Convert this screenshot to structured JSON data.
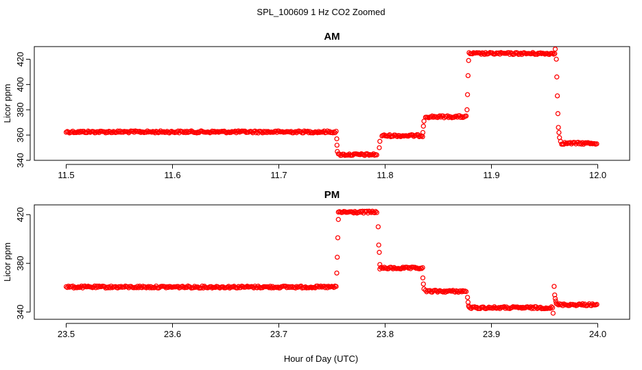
{
  "figure": {
    "title": "SPL_100609  1 Hz CO2 Zoomed",
    "xlabel": "Hour of Day (UTC)"
  },
  "chart_data": [
    {
      "type": "scatter",
      "title": "AM",
      "xlabel": "Hour of Day (UTC)",
      "ylabel": "Licor ppm",
      "xlim": [
        11.47,
        12.03
      ],
      "ylim": [
        340,
        430
      ],
      "x_ticks": [
        "11.5",
        "11.6",
        "11.7",
        "11.8",
        "11.9",
        "12.0"
      ],
      "y_ticks": [
        "340",
        "360",
        "380",
        "400",
        "420"
      ],
      "marker_color": "#ff0000",
      "marker": "open-circle",
      "grid": false,
      "segments": [
        {
          "x_start": 11.5,
          "x_end": 11.754,
          "y": 362.5
        },
        {
          "x_start": 11.756,
          "x_end": 11.793,
          "y": 344.5
        },
        {
          "x_start": 11.797,
          "x_end": 11.836,
          "y": 359.5
        },
        {
          "x_start": 11.838,
          "x_end": 11.877,
          "y": 374.5
        },
        {
          "x_start": 11.879,
          "x_end": 11.96,
          "y": 424.5
        },
        {
          "x_start": 11.966,
          "x_end": 12.0,
          "y": 353.5
        }
      ],
      "transition_points": [
        {
          "x": 11.7545,
          "y": 357
        },
        {
          "x": 11.7547,
          "y": 352
        },
        {
          "x": 11.755,
          "y": 347
        },
        {
          "x": 11.7945,
          "y": 350
        },
        {
          "x": 11.795,
          "y": 355
        },
        {
          "x": 11.8355,
          "y": 362
        },
        {
          "x": 11.836,
          "y": 367
        },
        {
          "x": 11.8365,
          "y": 371
        },
        {
          "x": 11.877,
          "y": 380
        },
        {
          "x": 11.8775,
          "y": 392
        },
        {
          "x": 11.878,
          "y": 407
        },
        {
          "x": 11.8785,
          "y": 419
        },
        {
          "x": 11.96,
          "y": 428
        },
        {
          "x": 11.961,
          "y": 420
        },
        {
          "x": 11.9615,
          "y": 406
        },
        {
          "x": 11.962,
          "y": 391
        },
        {
          "x": 11.9625,
          "y": 377
        },
        {
          "x": 11.963,
          "y": 366
        },
        {
          "x": 11.9635,
          "y": 362
        },
        {
          "x": 11.964,
          "y": 358
        },
        {
          "x": 11.965,
          "y": 355
        }
      ]
    },
    {
      "type": "scatter",
      "title": "PM",
      "xlabel": "Hour of Day (UTC)",
      "ylabel": "Licor ppm",
      "xlim": [
        23.47,
        24.03
      ],
      "ylim": [
        334,
        428
      ],
      "x_ticks": [
        "23.5",
        "23.6",
        "23.7",
        "23.8",
        "23.9",
        "24.0"
      ],
      "y_ticks": [
        "340",
        "380",
        "420"
      ],
      "marker_color": "#ff0000",
      "marker": "open-circle",
      "grid": false,
      "segments": [
        {
          "x_start": 23.5,
          "x_end": 23.754,
          "y": 360.5
        },
        {
          "x_start": 23.756,
          "x_end": 23.793,
          "y": 422
        },
        {
          "x_start": 23.795,
          "x_end": 23.836,
          "y": 376
        },
        {
          "x_start": 23.838,
          "x_end": 23.877,
          "y": 357
        },
        {
          "x_start": 23.879,
          "x_end": 23.958,
          "y": 343.5
        },
        {
          "x_start": 23.962,
          "x_end": 24.0,
          "y": 346
        }
      ],
      "transition_points": [
        {
          "x": 23.7545,
          "y": 372
        },
        {
          "x": 23.755,
          "y": 385
        },
        {
          "x": 23.7555,
          "y": 401
        },
        {
          "x": 23.756,
          "y": 416
        },
        {
          "x": 23.7935,
          "y": 410
        },
        {
          "x": 23.794,
          "y": 395
        },
        {
          "x": 23.7945,
          "y": 389
        },
        {
          "x": 23.795,
          "y": 379
        },
        {
          "x": 23.8355,
          "y": 368
        },
        {
          "x": 23.836,
          "y": 363
        },
        {
          "x": 23.8365,
          "y": 359
        },
        {
          "x": 23.8775,
          "y": 352
        },
        {
          "x": 23.878,
          "y": 348
        },
        {
          "x": 23.8785,
          "y": 345
        },
        {
          "x": 23.958,
          "y": 339
        },
        {
          "x": 23.959,
          "y": 361
        },
        {
          "x": 23.9595,
          "y": 354
        },
        {
          "x": 23.96,
          "y": 351
        },
        {
          "x": 23.9605,
          "y": 349
        },
        {
          "x": 23.961,
          "y": 347
        }
      ]
    }
  ]
}
